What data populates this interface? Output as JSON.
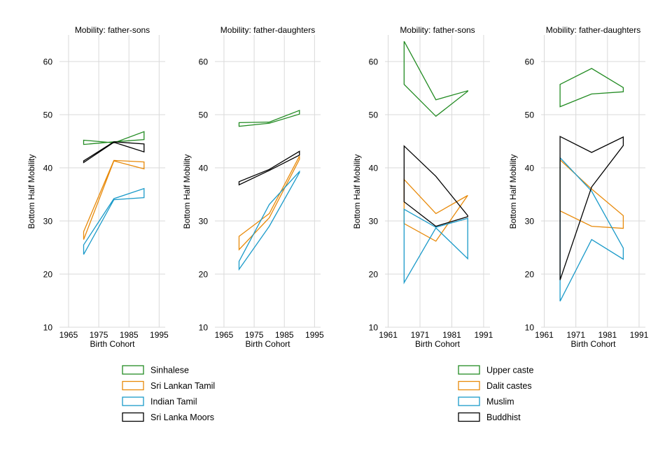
{
  "chart_data": [
    {
      "type": "line",
      "title": "Mobility: father-sons",
      "xlabel": "Birth Cohort",
      "ylabel": "Bottom Half Mobility",
      "xlim": [
        1962,
        1997
      ],
      "ylim": [
        10,
        65
      ],
      "xticks": [
        1965,
        1975,
        1985,
        1995
      ],
      "yticks": [
        10,
        20,
        30,
        40,
        50,
        60
      ],
      "grid": true,
      "legend_group": "ethnicity",
      "series": [
        {
          "name": "Sinhalese",
          "color": "#228b22",
          "x": [
            1970,
            1980,
            1990,
            1990,
            1980,
            1970
          ],
          "y": [
            45.2,
            44.7,
            46.8,
            45.3,
            44.9,
            44.4
          ]
        },
        {
          "name": "Sri Lankan Tamil",
          "color": "#e88a0a",
          "x": [
            1970,
            1980,
            1990,
            1990,
            1980,
            1970
          ],
          "y": [
            28.0,
            41.4,
            41.1,
            39.8,
            41.3,
            26.5
          ]
        },
        {
          "name": "Indian Tamil",
          "color": "#1a9ac9",
          "x": [
            1970,
            1980,
            1990,
            1990,
            1980,
            1970
          ],
          "y": [
            25.5,
            34.2,
            36.1,
            34.4,
            34.0,
            23.7
          ]
        },
        {
          "name": "Sri Lanka Moors",
          "color": "#000000",
          "x": [
            1970,
            1980,
            1990,
            1990,
            1980,
            1970
          ],
          "y": [
            41.3,
            44.9,
            44.5,
            43.0,
            44.8,
            41.0
          ]
        }
      ]
    },
    {
      "type": "line",
      "title": "Mobility: father-daughters",
      "xlabel": "Birth Cohort",
      "ylabel": "Bottom Half Mobility",
      "xlim": [
        1962,
        1997
      ],
      "ylim": [
        10,
        65
      ],
      "xticks": [
        1965,
        1975,
        1985,
        1995
      ],
      "yticks": [
        10,
        20,
        30,
        40,
        50,
        60
      ],
      "grid": true,
      "legend_group": "ethnicity",
      "series": [
        {
          "name": "Sinhalese",
          "color": "#228b22",
          "x": [
            1970,
            1980,
            1990,
            1990,
            1980,
            1970
          ],
          "y": [
            48.5,
            48.6,
            50.8,
            50.1,
            48.4,
            47.8
          ]
        },
        {
          "name": "Sri Lankan Tamil",
          "color": "#e88a0a",
          "x": [
            1970,
            1980,
            1990,
            1990,
            1980,
            1970
          ],
          "y": [
            27.1,
            31.4,
            42.2,
            41.6,
            30.6,
            24.6
          ]
        },
        {
          "name": "Indian Tamil",
          "color": "#1a9ac9",
          "x": [
            1970,
            1980,
            1990,
            1990,
            1980,
            1970
          ],
          "y": [
            22.4,
            33.1,
            39.3,
            39.1,
            29.0,
            20.9
          ]
        },
        {
          "name": "Sri Lanka Moors",
          "color": "#000000",
          "x": [
            1970,
            1980,
            1990,
            1990,
            1980,
            1970
          ],
          "y": [
            37.4,
            39.7,
            43.1,
            42.4,
            39.5,
            36.8
          ]
        }
      ]
    },
    {
      "type": "line",
      "title": "Mobility: father-sons",
      "xlabel": "Birth Cohort",
      "ylabel": "Bottom Half Mobility",
      "xlim": [
        1960,
        1993
      ],
      "ylim": [
        10,
        65
      ],
      "xticks": [
        1961,
        1971,
        1981,
        1991
      ],
      "yticks": [
        10,
        20,
        30,
        40,
        50,
        60
      ],
      "grid": true,
      "legend_group": "caste",
      "series": [
        {
          "name": "Upper caste",
          "color": "#228b22",
          "x": [
            1966,
            1976,
            1986,
            1986,
            1976,
            1966
          ],
          "y": [
            63.8,
            52.8,
            54.5,
            54.4,
            49.7,
            55.7
          ]
        },
        {
          "name": "Dalit castes",
          "color": "#e88a0a",
          "x": [
            1966,
            1976,
            1986,
            1986,
            1976,
            1966
          ],
          "y": [
            37.8,
            31.4,
            34.8,
            34.8,
            26.2,
            29.5
          ]
        },
        {
          "name": "Muslim",
          "color": "#1a9ac9",
          "x": [
            1966,
            1976,
            1986,
            1986,
            1976,
            1966
          ],
          "y": [
            32.2,
            28.8,
            30.5,
            22.9,
            28.7,
            18.4
          ]
        },
        {
          "name": "Buddhist",
          "color": "#000000",
          "x": [
            1966,
            1976,
            1986,
            1986,
            1976,
            1966
          ],
          "y": [
            44.1,
            38.4,
            31.0,
            30.8,
            29.0,
            33.6
          ]
        }
      ]
    },
    {
      "type": "line",
      "title": "Mobility: father-daughters",
      "xlabel": "Birth Cohort",
      "ylabel": "Bottom Half Mobility",
      "xlim": [
        1960,
        1993
      ],
      "ylim": [
        10,
        65
      ],
      "xticks": [
        1961,
        1971,
        1981,
        1991
      ],
      "yticks": [
        10,
        20,
        30,
        40,
        50,
        60
      ],
      "grid": true,
      "legend_group": "caste",
      "series": [
        {
          "name": "Upper caste",
          "color": "#228b22",
          "x": [
            1966,
            1976,
            1986,
            1986,
            1976,
            1966
          ],
          "y": [
            55.7,
            58.7,
            55.1,
            54.3,
            53.9,
            51.5
          ]
        },
        {
          "name": "Dalit castes",
          "color": "#e88a0a",
          "x": [
            1966,
            1976,
            1986,
            1986,
            1976,
            1966
          ],
          "y": [
            41.5,
            36.0,
            31.0,
            28.6,
            29.0,
            31.9
          ]
        },
        {
          "name": "Muslim",
          "color": "#1a9ac9",
          "x": [
            1966,
            1976,
            1986,
            1986,
            1976,
            1966
          ],
          "y": [
            41.9,
            35.6,
            24.9,
            22.8,
            26.5,
            14.9
          ]
        },
        {
          "name": "Buddhist",
          "color": "#000000",
          "x": [
            1966,
            1976,
            1986,
            1986,
            1976,
            1966
          ],
          "y": [
            45.9,
            42.9,
            45.8,
            44.2,
            36.4,
            18.9
          ]
        }
      ]
    }
  ],
  "legends": [
    {
      "group": "ethnicity",
      "items": [
        {
          "label": "Sinhalese",
          "color": "#228b22"
        },
        {
          "label": "Sri Lankan Tamil",
          "color": "#e88a0a"
        },
        {
          "label": "Indian Tamil",
          "color": "#1a9ac9"
        },
        {
          "label": "Sri Lanka Moors",
          "color": "#000000"
        }
      ]
    },
    {
      "group": "caste",
      "items": [
        {
          "label": "Upper caste",
          "color": "#228b22"
        },
        {
          "label": "Dalit castes",
          "color": "#e88a0a"
        },
        {
          "label": "Muslim",
          "color": "#1a9ac9"
        },
        {
          "label": "Buddhist",
          "color": "#000000"
        }
      ]
    }
  ]
}
